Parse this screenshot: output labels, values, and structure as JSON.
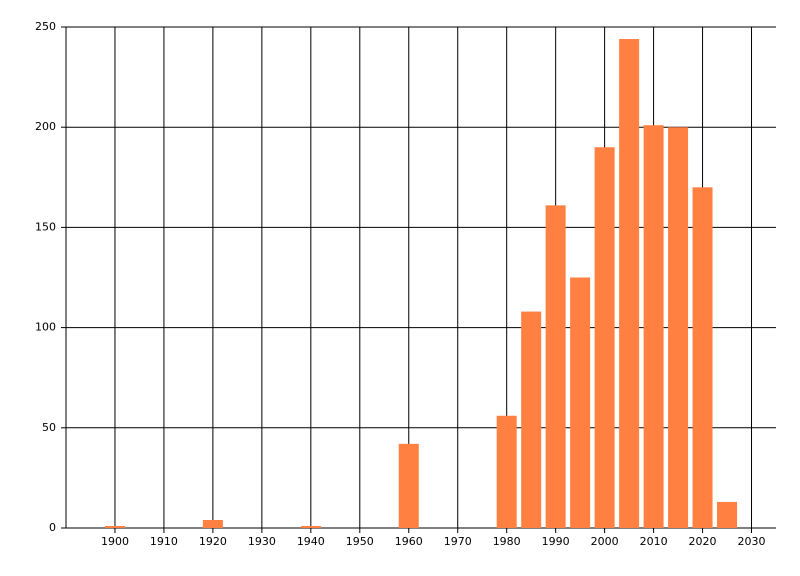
{
  "chart_data": {
    "type": "bar",
    "x": [
      1900,
      1920,
      1940,
      1960,
      1980,
      1985,
      1990,
      1995,
      2000,
      2005,
      2010,
      2015,
      2020,
      2025
    ],
    "values": [
      1,
      4,
      1,
      42,
      56,
      108,
      161,
      125,
      190,
      244,
      201,
      200,
      170,
      13
    ],
    "color": "#ff8040",
    "xlim": [
      1890,
      2035
    ],
    "xticks": [
      1900,
      1910,
      1920,
      1930,
      1940,
      1950,
      1960,
      1970,
      1980,
      1990,
      2000,
      2010,
      2020,
      2030
    ],
    "ylim": [
      0,
      250
    ],
    "yticks": [
      0,
      50,
      100,
      150,
      200,
      250
    ],
    "grid": true
  }
}
